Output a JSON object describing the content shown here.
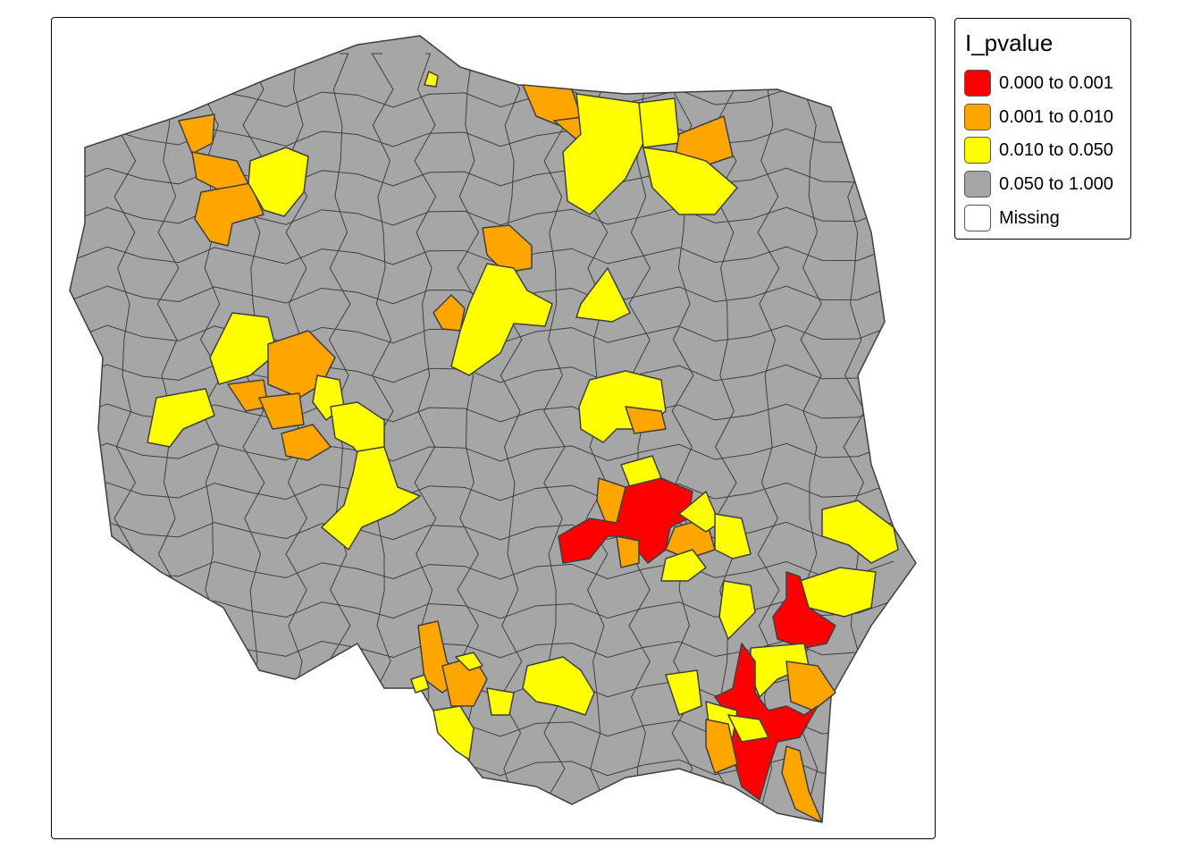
{
  "map": {
    "variable": "I_pvalue",
    "region_border_color": "#3f3f3f"
  },
  "legend": {
    "title": "I_pvalue",
    "items": [
      {
        "label": "0.000 to 0.001",
        "color": "#ff0000"
      },
      {
        "label": "0.001 to 0.010",
        "color": "#ffa500"
      },
      {
        "label": "0.010 to 0.050",
        "color": "#ffff00"
      },
      {
        "label": "0.050 to 1.000",
        "color": "#a6a6a6"
      },
      {
        "label": "Missing",
        "color": "#ffffff"
      }
    ]
  }
}
